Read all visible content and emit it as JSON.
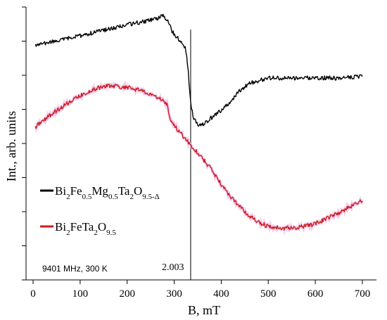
{
  "chart_data": {
    "type": "line",
    "xlabel": "B, mT",
    "ylabel": "Int., arb. units",
    "xlim": [
      -15,
      730
    ],
    "ylim": [
      0,
      1
    ],
    "x_ticks": [
      0,
      100,
      200,
      300,
      400,
      500,
      600,
      700
    ],
    "y_ticks_count": 9,
    "y_tick_labels_shown": false,
    "grid": false,
    "legend_position": "left-middle",
    "series": [
      {
        "name_parts": [
          [
            "Bi",
            ""
          ],
          [
            "2",
            "sub"
          ],
          [
            "Fe",
            ""
          ],
          [
            "0.5",
            "sub"
          ],
          [
            "Mg",
            ""
          ],
          [
            "0.5",
            "sub"
          ],
          [
            "Ta",
            ""
          ],
          [
            "2",
            "sub"
          ],
          [
            "O",
            ""
          ],
          [
            "9.5-Δ",
            "sub"
          ]
        ],
        "color": "#000000",
        "x": [
          5,
          50,
          100,
          150,
          200,
          230,
          260,
          275,
          285,
          295,
          305,
          315,
          320,
          325,
          330,
          335,
          340,
          345,
          350,
          355,
          365,
          380,
          400,
          420,
          440,
          460,
          500,
          550,
          600,
          650,
          700
        ],
        "y": [
          0.86,
          0.875,
          0.895,
          0.915,
          0.935,
          0.945,
          0.955,
          0.97,
          0.95,
          0.915,
          0.89,
          0.875,
          0.865,
          0.84,
          0.76,
          0.65,
          0.6,
          0.585,
          0.57,
          0.565,
          0.575,
          0.595,
          0.62,
          0.655,
          0.695,
          0.72,
          0.74,
          0.74,
          0.74,
          0.74,
          0.745
        ]
      },
      {
        "name_parts": [
          [
            "Bi",
            ""
          ],
          [
            "2",
            "sub"
          ],
          [
            "FeTa",
            ""
          ],
          [
            "2",
            "sub"
          ],
          [
            "O",
            ""
          ],
          [
            "9.5",
            "sub"
          ]
        ],
        "color": "#c81e1e",
        "x": [
          5,
          25,
          50,
          75,
          100,
          125,
          150,
          175,
          200,
          225,
          250,
          270,
          285,
          290,
          300,
          310,
          330,
          350,
          375,
          400,
          425,
          450,
          475,
          500,
          525,
          550,
          575,
          600,
          625,
          650,
          675,
          700
        ],
        "y": [
          0.56,
          0.59,
          0.62,
          0.65,
          0.675,
          0.695,
          0.71,
          0.71,
          0.705,
          0.695,
          0.68,
          0.665,
          0.64,
          0.595,
          0.565,
          0.545,
          0.505,
          0.465,
          0.415,
          0.35,
          0.295,
          0.25,
          0.215,
          0.195,
          0.19,
          0.19,
          0.195,
          0.205,
          0.225,
          0.245,
          0.27,
          0.29
        ]
      }
    ],
    "annotations": {
      "marker_x": 335,
      "marker_label": "2.003",
      "conditions": "9401 MHz, 300 K"
    }
  }
}
